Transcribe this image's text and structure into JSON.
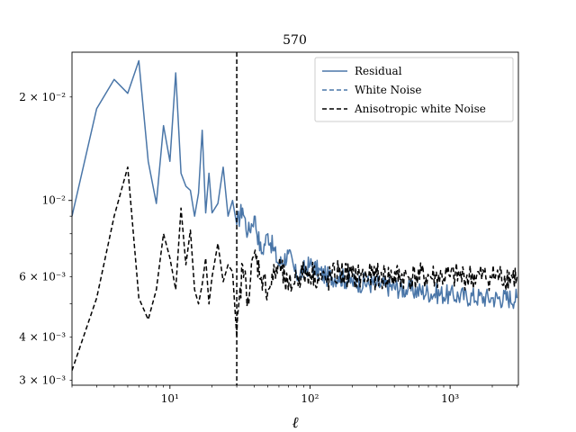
{
  "chart_data": {
    "type": "line",
    "title": "570",
    "xlabel": "ℓ",
    "ylabel": "",
    "xscale": "log",
    "yscale": "log",
    "xlim": [
      2,
      3072
    ],
    "ylim": [
      0.0029,
      0.027
    ],
    "x_ticks": [
      {
        "value": 10,
        "label": "10¹"
      },
      {
        "value": 100,
        "label": "10²"
      },
      {
        "value": 1000,
        "label": "10³"
      }
    ],
    "y_ticks": [
      {
        "value": 0.003,
        "label": "3 × 10⁻³"
      },
      {
        "value": 0.004,
        "label": "4 × 10⁻³"
      },
      {
        "value": 0.006,
        "label": "6 × 10⁻³"
      },
      {
        "value": 0.01,
        "label": "10⁻²"
      },
      {
        "value": 0.02,
        "label": "2 × 10⁻²"
      }
    ],
    "vline": {
      "x": 30,
      "style": "dashed",
      "color": "#000000"
    },
    "legend": {
      "position": "top-right"
    },
    "series": [
      {
        "name": "Residual",
        "color": "#4a76a8",
        "style": "solid",
        "x": [
          2,
          3,
          4,
          5,
          6,
          7,
          8,
          9,
          10,
          11,
          12,
          13,
          14,
          15,
          16,
          17,
          18,
          19,
          20,
          22,
          24,
          26,
          28,
          30,
          33,
          36,
          40,
          45,
          50,
          60,
          70,
          80,
          100,
          130,
          160,
          200,
          300,
          500,
          1000,
          2000,
          3000
        ],
        "values": [
          0.009,
          0.0185,
          0.0225,
          0.0205,
          0.0255,
          0.013,
          0.0098,
          0.0165,
          0.013,
          0.0235,
          0.012,
          0.011,
          0.0107,
          0.009,
          0.0105,
          0.016,
          0.0092,
          0.012,
          0.0092,
          0.0098,
          0.0125,
          0.009,
          0.01,
          0.0085,
          0.0095,
          0.008,
          0.009,
          0.007,
          0.008,
          0.0065,
          0.007,
          0.006,
          0.0065,
          0.006,
          0.006,
          0.0058,
          0.0057,
          0.0055,
          0.0053,
          0.0052,
          0.0052
        ]
      },
      {
        "name": "White Noise",
        "color": "#4a76a8",
        "style": "dashed",
        "x": [],
        "values": []
      },
      {
        "name": "Anisotropic white Noise",
        "color": "#000000",
        "style": "dashed",
        "x": [
          2,
          3,
          4,
          5,
          6,
          7,
          8,
          9,
          10,
          11,
          12,
          13,
          14,
          15,
          16,
          17,
          18,
          19,
          20,
          22,
          24,
          26,
          28,
          30,
          33,
          36,
          40,
          45,
          50,
          60,
          70,
          80,
          100,
          130,
          160,
          200,
          300,
          500,
          1000,
          2000,
          3000
        ],
        "values": [
          0.0032,
          0.0052,
          0.009,
          0.0125,
          0.0052,
          0.0045,
          0.0055,
          0.008,
          0.0068,
          0.0055,
          0.0095,
          0.0065,
          0.0082,
          0.0055,
          0.005,
          0.0057,
          0.0068,
          0.005,
          0.006,
          0.0075,
          0.0058,
          0.0065,
          0.0062,
          0.004,
          0.0065,
          0.0052,
          0.007,
          0.006,
          0.0055,
          0.0065,
          0.0055,
          0.006,
          0.0062,
          0.0058,
          0.0062,
          0.006,
          0.006,
          0.006,
          0.006,
          0.006,
          0.006
        ]
      }
    ]
  }
}
